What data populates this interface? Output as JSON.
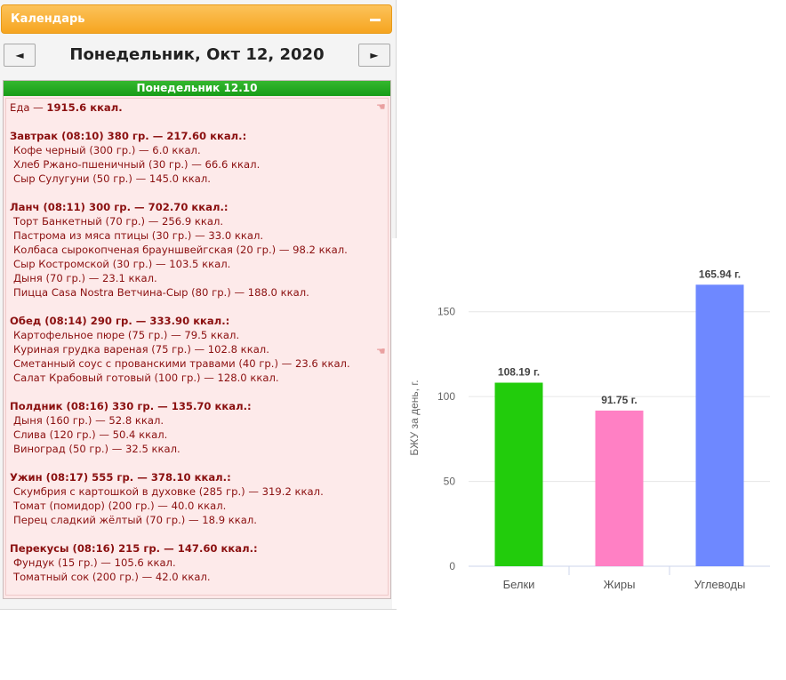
{
  "calendar": {
    "title": "Календарь",
    "prev_label": "◄",
    "next_label": "►",
    "date_title": "Понедельник, Окт 12, 2020",
    "day_header": "Понедельник 12.10"
  },
  "food": {
    "label": "Еда — ",
    "total": "1915.6 ккал."
  },
  "meals": [
    {
      "title": "Завтрак (08:10) 380 гр. — 217.60 ккал.:",
      "items": [
        "Кофе черный (300 гр.) — 6.0 ккал.",
        "Хлеб Ржано-пшеничный (30 гр.) — 66.6 ккал.",
        "Сыр Сулугуни (50 гр.) — 145.0 ккал."
      ]
    },
    {
      "title": "Ланч (08:11) 300 гр. — 702.70 ккал.:",
      "items": [
        "Торт Банкетный (70 гр.) — 256.9 ккал.",
        "Пастрома из мяса птицы (30 гр.) — 33.0 ккал.",
        "Колбаса сырокопченая брауншвейгская (20 гр.) — 98.2 ккал.",
        "Сыр Костромской (30 гр.) — 103.5 ккал.",
        "Дыня (70 гр.) — 23.1 ккал.",
        "Пицца Casa Nostra Ветчина-Сыр (80 гр.) — 188.0 ккал."
      ]
    },
    {
      "title": "Обед (08:14) 290 гр. — 333.90 ккал.:",
      "items": [
        "Картофельное пюре (75 гр.) — 79.5 ккал.",
        "Куриная грудка вареная (75 гр.) — 102.8 ккал.",
        "Сметанный соус с прованскими травами (40 гр.) — 23.6 ккал.",
        "Салат Крабовый готовый (100 гр.) — 128.0 ккал."
      ]
    },
    {
      "title": "Полдник (08:16) 330 гр. — 135.70 ккал.:",
      "items": [
        "Дыня (160 гр.) — 52.8 ккал.",
        "Слива (120 гр.) — 50.4 ккал.",
        "Виноград (50 гр.) — 32.5 ккал."
      ]
    },
    {
      "title": "Ужин (08:17) 555 гр. — 378.10 ккал.:",
      "items": [
        "Скумбрия с картошкой в духовке (285 гр.) — 319.2 ккал.",
        "Томат (помидор) (200 гр.) — 40.0 ккал.",
        "Перец сладкий жёлтый (70 гр.) — 18.9 ккал."
      ]
    },
    {
      "title": "Перекусы (08:16) 215 гр. — 147.60 ккал.:",
      "items": [
        "Фундук (15 гр.) — 105.6 ккал.",
        "Томатный сок (200 гр.) — 42.0 ккал."
      ]
    }
  ],
  "chart_data": {
    "type": "bar",
    "categories": [
      "Белки",
      "Жиры",
      "Углеводы"
    ],
    "values": [
      108.19,
      91.75,
      165.94
    ],
    "data_labels": [
      "108.19 г.",
      "91.75 г.",
      "165.94 г."
    ],
    "colors": [
      "#22cc0c",
      "#ff80c4",
      "#6e88ff"
    ],
    "ylabel": "БЖУ за день, г.",
    "yticks": [
      0,
      50,
      100,
      150
    ],
    "ylim": [
      0,
      175
    ],
    "grid": true
  }
}
